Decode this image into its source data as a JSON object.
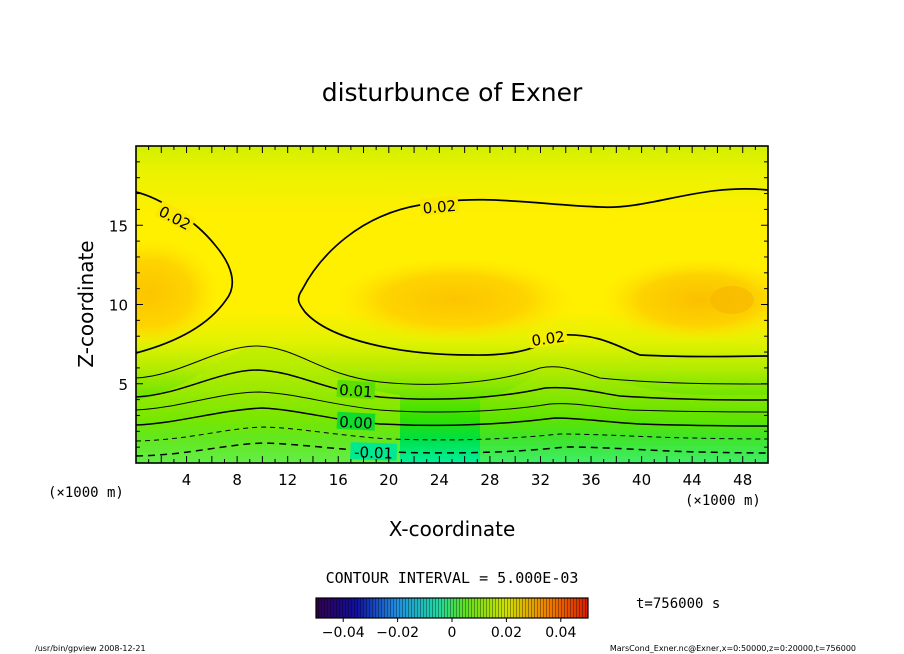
{
  "chart_data": {
    "type": "heatmap",
    "title": "disturbunce of Exner",
    "xlabel": "X-coordinate",
    "ylabel": "Z-coordinate",
    "x_unit": "(×1000 m)",
    "x_ticks": [
      4,
      8,
      12,
      16,
      20,
      24,
      28,
      32,
      36,
      40,
      44,
      48
    ],
    "y_ticks": [
      5,
      10,
      15
    ],
    "xlim": [
      0,
      50
    ],
    "ylim": [
      0,
      20
    ],
    "contour_interval_text": "CONTOUR INTERVAL = 5.000E-03",
    "time_text": "t=756000 s",
    "contour_labels": [
      {
        "text": "0.02",
        "x": 3.1,
        "z": 15.5,
        "angle": 28
      },
      {
        "text": "0.02",
        "x": 24.0,
        "z": 16.2,
        "angle": -5
      },
      {
        "text": "0.02",
        "x": 32.6,
        "z": 7.9,
        "angle": -8
      },
      {
        "text": "0.01",
        "x": 17.4,
        "z": 4.6,
        "angle": 4
      },
      {
        "text": "0.00",
        "x": 17.4,
        "z": 2.6,
        "angle": 3
      },
      {
        "text": "-0.01",
        "x": 18.8,
        "z": 0.7,
        "angle": 2
      }
    ],
    "colorbar": {
      "range": [
        -0.05,
        0.05
      ],
      "tick_values": [
        -0.04,
        -0.02,
        0,
        0.02,
        0.04
      ],
      "tick_labels": [
        "−0.04",
        "−0.02",
        "0",
        "0.02",
        "0.04"
      ]
    }
  },
  "footer": {
    "left": "/usr/bin/gpview   2008-12-21",
    "right": "MarsCond_Exner.nc@Exner,x=0:50000,z=0:20000,t=756000"
  }
}
